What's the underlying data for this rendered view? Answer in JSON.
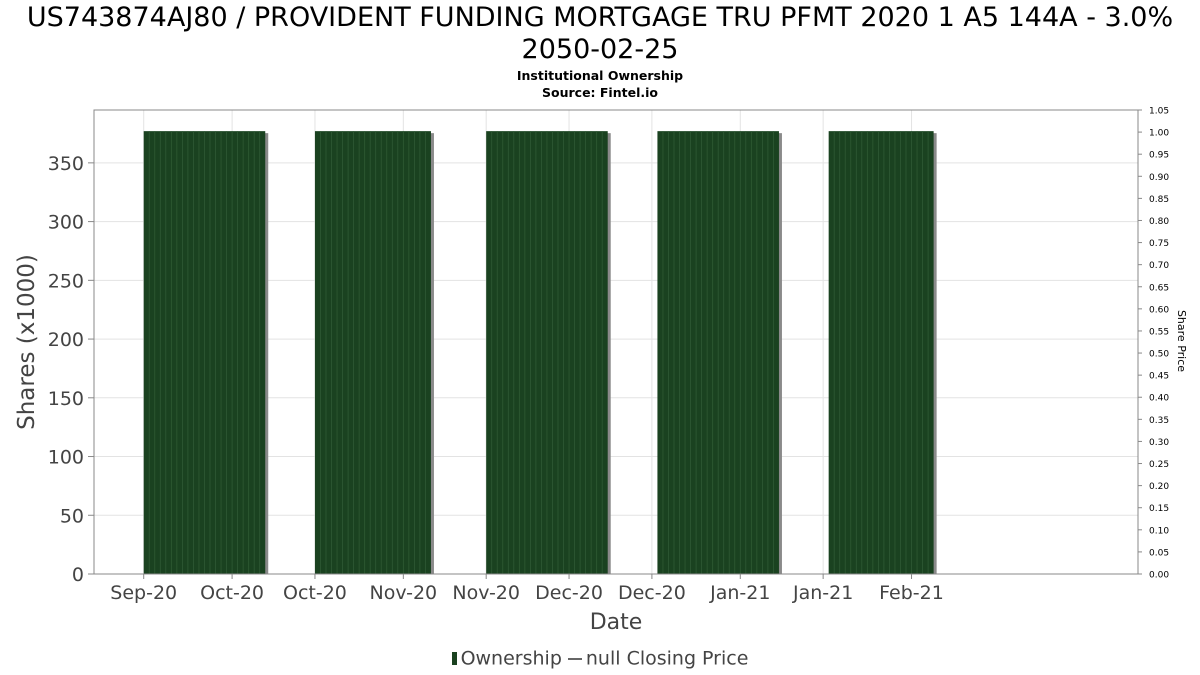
{
  "chart_data": {
    "type": "bar",
    "title": "US743874AJ80 / PROVIDENT FUNDING MORTGAGE TRU PFMT 2020 1 A5 144A - 3.0% 2050-02-25",
    "subtitle": "Institutional Ownership",
    "source": "Source: Fintel.io",
    "xlabel": "Date",
    "ylabel": "Shares (x1000)",
    "y2label": "Share Price",
    "ylim": [
      0,
      395
    ],
    "y2lim": [
      0,
      1.05
    ],
    "yticks": [
      0,
      50,
      100,
      150,
      200,
      250,
      300,
      350
    ],
    "y2ticks": [
      "0.00",
      "0.05",
      "0.10",
      "0.15",
      "0.20",
      "0.25",
      "0.30",
      "0.35",
      "0.40",
      "0.45",
      "0.50",
      "0.55",
      "0.60",
      "0.65",
      "0.70",
      "0.75",
      "0.80",
      "0.85",
      "0.90",
      "0.95",
      "1.00",
      "1.05"
    ],
    "xlim": [
      "2020-09-06",
      "2021-03-14"
    ],
    "xticks": [
      {
        "label": "Sep-20",
        "date": "2020-09-15"
      },
      {
        "label": "Oct-20",
        "date": "2020-10-01"
      },
      {
        "label": "Oct-20",
        "date": "2020-10-16"
      },
      {
        "label": "Nov-20",
        "date": "2020-11-01"
      },
      {
        "label": "Nov-20",
        "date": "2020-11-16"
      },
      {
        "label": "Dec-20",
        "date": "2020-12-01"
      },
      {
        "label": "Dec-20",
        "date": "2020-12-16"
      },
      {
        "label": "Jan-21",
        "date": "2021-01-01"
      },
      {
        "label": "Jan-21",
        "date": "2021-01-16"
      },
      {
        "label": "Feb-21",
        "date": "2021-02-01"
      }
    ],
    "series": [
      {
        "name": "Ownership",
        "color": "#1a4220",
        "values": [
          {
            "start": "2020-09-15",
            "end": "2020-10-06",
            "value": 377
          },
          {
            "start": "2020-10-16",
            "end": "2020-11-05",
            "value": 377
          },
          {
            "start": "2020-11-16",
            "end": "2020-12-07",
            "value": 377
          },
          {
            "start": "2020-12-17",
            "end": "2021-01-07",
            "value": 377
          },
          {
            "start": "2021-01-17",
            "end": "2021-02-04",
            "value": 377
          }
        ]
      },
      {
        "name": "null Closing Price",
        "color": "#666666",
        "values": []
      }
    ],
    "grid": true,
    "legend": "bottom"
  }
}
